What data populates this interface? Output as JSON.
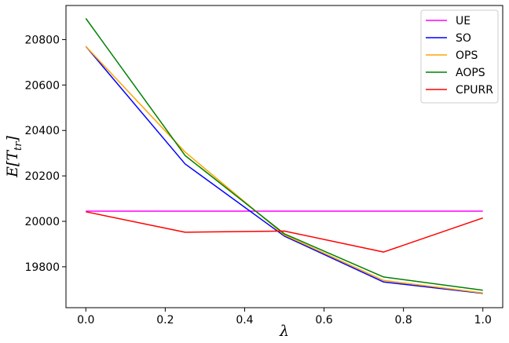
{
  "chart_data": {
    "type": "line",
    "xlabel": "λ",
    "ylabel": "E[T_tr]",
    "ylabel_main": "E[T",
    "ylabel_sub": "tr",
    "ylabel_close": "]",
    "xlim": [
      -0.05,
      1.05
    ],
    "ylim": [
      19620,
      20950
    ],
    "x_ticks": [
      0.0,
      0.2,
      0.4,
      0.6,
      0.8,
      1.0
    ],
    "x_tick_labels": [
      "0.0",
      "0.2",
      "0.4",
      "0.6",
      "0.8",
      "1.0"
    ],
    "y_ticks": [
      19800,
      20000,
      20200,
      20400,
      20600,
      20800
    ],
    "y_tick_labels": [
      "19800",
      "20000",
      "20200",
      "20400",
      "20600",
      "20800"
    ],
    "grid": false,
    "legend_position": "top-right",
    "x": [
      0.0,
      0.25,
      0.5,
      0.75,
      1.0
    ],
    "series": [
      {
        "name": "UE",
        "color": "#ff00ff",
        "values": [
          20045,
          20045,
          20045,
          20045,
          20045
        ]
      },
      {
        "name": "SO",
        "color": "#0000ff",
        "values": [
          20770,
          20253,
          19935,
          19733,
          19683
        ]
      },
      {
        "name": "OPS",
        "color": "#ffa500",
        "values": [
          20770,
          20305,
          19940,
          19740,
          19685
        ]
      },
      {
        "name": "AOPS",
        "color": "#008000",
        "values": [
          20893,
          20290,
          19945,
          19755,
          19697
        ]
      },
      {
        "name": "CPURR",
        "color": "#ff0000",
        "values": [
          20042,
          19952,
          19957,
          19865,
          20015
        ]
      }
    ]
  }
}
